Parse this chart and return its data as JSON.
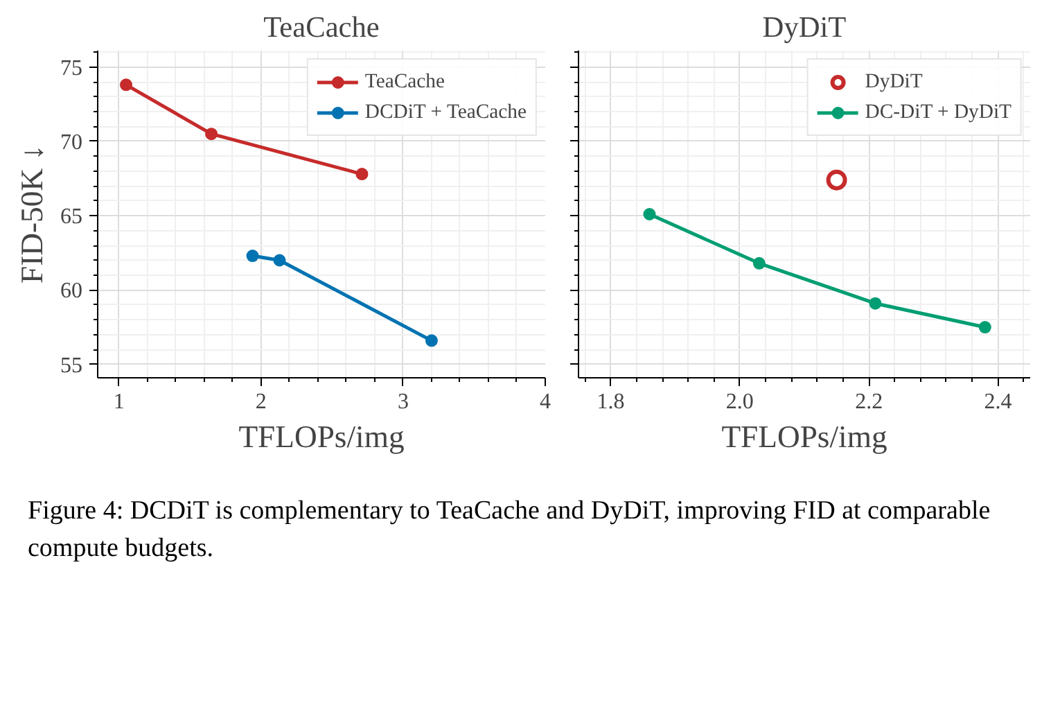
{
  "chart_data": [
    {
      "type": "line",
      "title": "TeaCache",
      "xlabel": "TFLOPs/img",
      "ylabel": "FID-50K ↓",
      "xlim": [
        0.85,
        4.0
      ],
      "ylim": [
        54.1,
        76.1
      ],
      "xticks": [
        1,
        2,
        3,
        4
      ],
      "yticks": [
        55,
        60,
        65,
        70,
        75
      ],
      "grid": true,
      "legend": "top right",
      "marker": "circle",
      "line_style": "solid",
      "series": [
        {
          "name": "TeaCache",
          "color": "#c62b2b",
          "x": [
            1.05,
            1.65,
            2.71
          ],
          "values": [
            73.8,
            70.5,
            67.8
          ]
        },
        {
          "name": "DCDiT + TeaCache",
          "color": "#0173b2",
          "x": [
            1.94,
            2.13,
            3.2
          ],
          "values": [
            62.3,
            62.0,
            56.6
          ]
        }
      ],
      "annotations": [
        "Figure 4: DCDiT is complementary to TeaCache and DyDiT, improving FID at comparable compute budgets."
      ]
    },
    {
      "type": "line",
      "title": "DyDiT",
      "xlabel": "TFLOPs/img",
      "xlim": [
        1.75,
        2.45
      ],
      "ylim": [
        54.1,
        76.1
      ],
      "xticks": [
        1.8,
        {
          "value": 2.0,
          "label": "2.0"
        },
        2.2,
        2.4
      ],
      "yticks": [
        55,
        60,
        65,
        70,
        75
      ],
      "tick_labels": "x",
      "grid": true,
      "legend": "top right",
      "marker": "circle",
      "line_style": "solid",
      "series": [
        {
          "name": "DyDiT",
          "type": "scatter",
          "color": "#c62b2b",
          "x": [
            2.15
          ],
          "values": [
            67.4
          ]
        },
        {
          "name": "DC-DiT + DyDiT",
          "color": "#029e73",
          "x": [
            1.86,
            2.03,
            2.21,
            2.38
          ],
          "values": [
            65.1,
            61.8,
            59.1,
            57.5
          ]
        }
      ]
    }
  ]
}
